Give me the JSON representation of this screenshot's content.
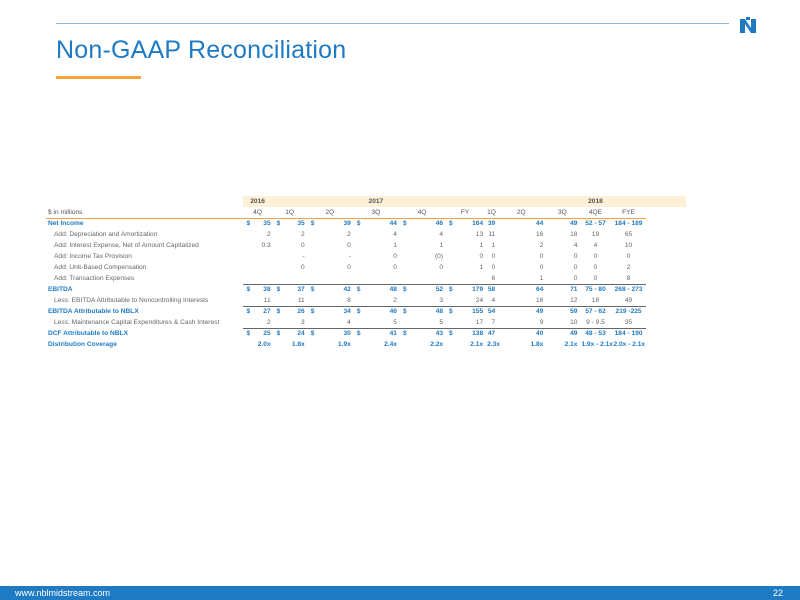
{
  "title": "Non-GAAP Reconciliation",
  "colors": {
    "brand_blue": "#1f7ac4",
    "accent_orange": "#f2a33a",
    "band": "#fdf0d6"
  },
  "logo": "nbl-midstream-logo",
  "footer": {
    "url": "www.nblmidstream.com",
    "page": "22"
  },
  "table": {
    "years": {
      "y2016": "2016",
      "y2017": "2017",
      "y2018": "2018"
    },
    "units_label": "$ in millions",
    "quarters": [
      "4Q",
      "1Q",
      "2Q",
      "3Q",
      "4Q",
      "FY",
      "1Q",
      "2Q",
      "3Q",
      "4QE",
      "FYE"
    ],
    "rows": [
      {
        "label": "Net Income",
        "values": [
          "35",
          "35",
          "39",
          "44",
          "46",
          "164",
          "39",
          "44",
          "49",
          "52 - 57",
          "184 - 189"
        ],
        "currency": true
      },
      {
        "label": "Add: Depreciation and Amortization",
        "values": [
          "2",
          "2",
          "2",
          "4",
          "4",
          "13",
          "11",
          "16",
          "18",
          "19",
          "65"
        ]
      },
      {
        "label": "Add: Interest Expense, Net of Amount Capitalized",
        "values": [
          "0.3",
          "0",
          "0",
          "1",
          "1",
          "1",
          "1",
          "2",
          "4",
          "4",
          "10"
        ]
      },
      {
        "label": "Add: Income Tax Provision",
        "values": [
          "",
          "-",
          "-",
          "0",
          "(0)",
          "0",
          "0",
          "0",
          "0",
          "0",
          "0"
        ]
      },
      {
        "label": "Add: Unit-Based Compensation",
        "values": [
          "",
          "0",
          "0",
          "0",
          "0",
          "1",
          "0",
          "0",
          "0",
          "0",
          "2"
        ]
      },
      {
        "label": "Add: Transaction Expenses",
        "values": [
          "",
          "",
          "",
          "",
          "",
          "",
          "6",
          "1",
          "0",
          "0",
          "8"
        ]
      },
      {
        "label": "EBITDA",
        "values": [
          "38",
          "37",
          "42",
          "48",
          "52",
          "179",
          "58",
          "64",
          "71",
          "75 - 80",
          "268 - 273"
        ],
        "currency": true
      },
      {
        "label": "Less: EBITDA Attributable to Noncontrolling Interests",
        "values": [
          "11",
          "11",
          "8",
          "2",
          "3",
          "24",
          "4",
          "16",
          "12",
          "18",
          "49"
        ]
      },
      {
        "label": "EBITDA Attributable to NBLX",
        "values": [
          "27",
          "26",
          "34",
          "46",
          "48",
          "155",
          "54",
          "49",
          "59",
          "57 - 62",
          "219 -225"
        ],
        "currency": true
      },
      {
        "label": "Less: Maintenance Capital Expenditures & Cash Interest",
        "values": [
          "2",
          "3",
          "4",
          "5",
          "5",
          "17",
          "7",
          "9",
          "10",
          "9 - 9.5",
          "35"
        ]
      },
      {
        "label": "DCF Attributable to NBLX",
        "values": [
          "25",
          "24",
          "30",
          "41",
          "43",
          "138",
          "47",
          "40",
          "49",
          "48 - 53",
          "184 - 190"
        ],
        "currency": true
      },
      {
        "label": "Distribution Coverage",
        "values": [
          "2.0x",
          "1.8x",
          "1.9x",
          "2.4x",
          "2.2x",
          "2.1x",
          "2.3x",
          "1.8x",
          "2.1x",
          "1.9x - 2.1x",
          "2.0x - 2.1x"
        ]
      }
    ],
    "currency_symbol": "$"
  }
}
